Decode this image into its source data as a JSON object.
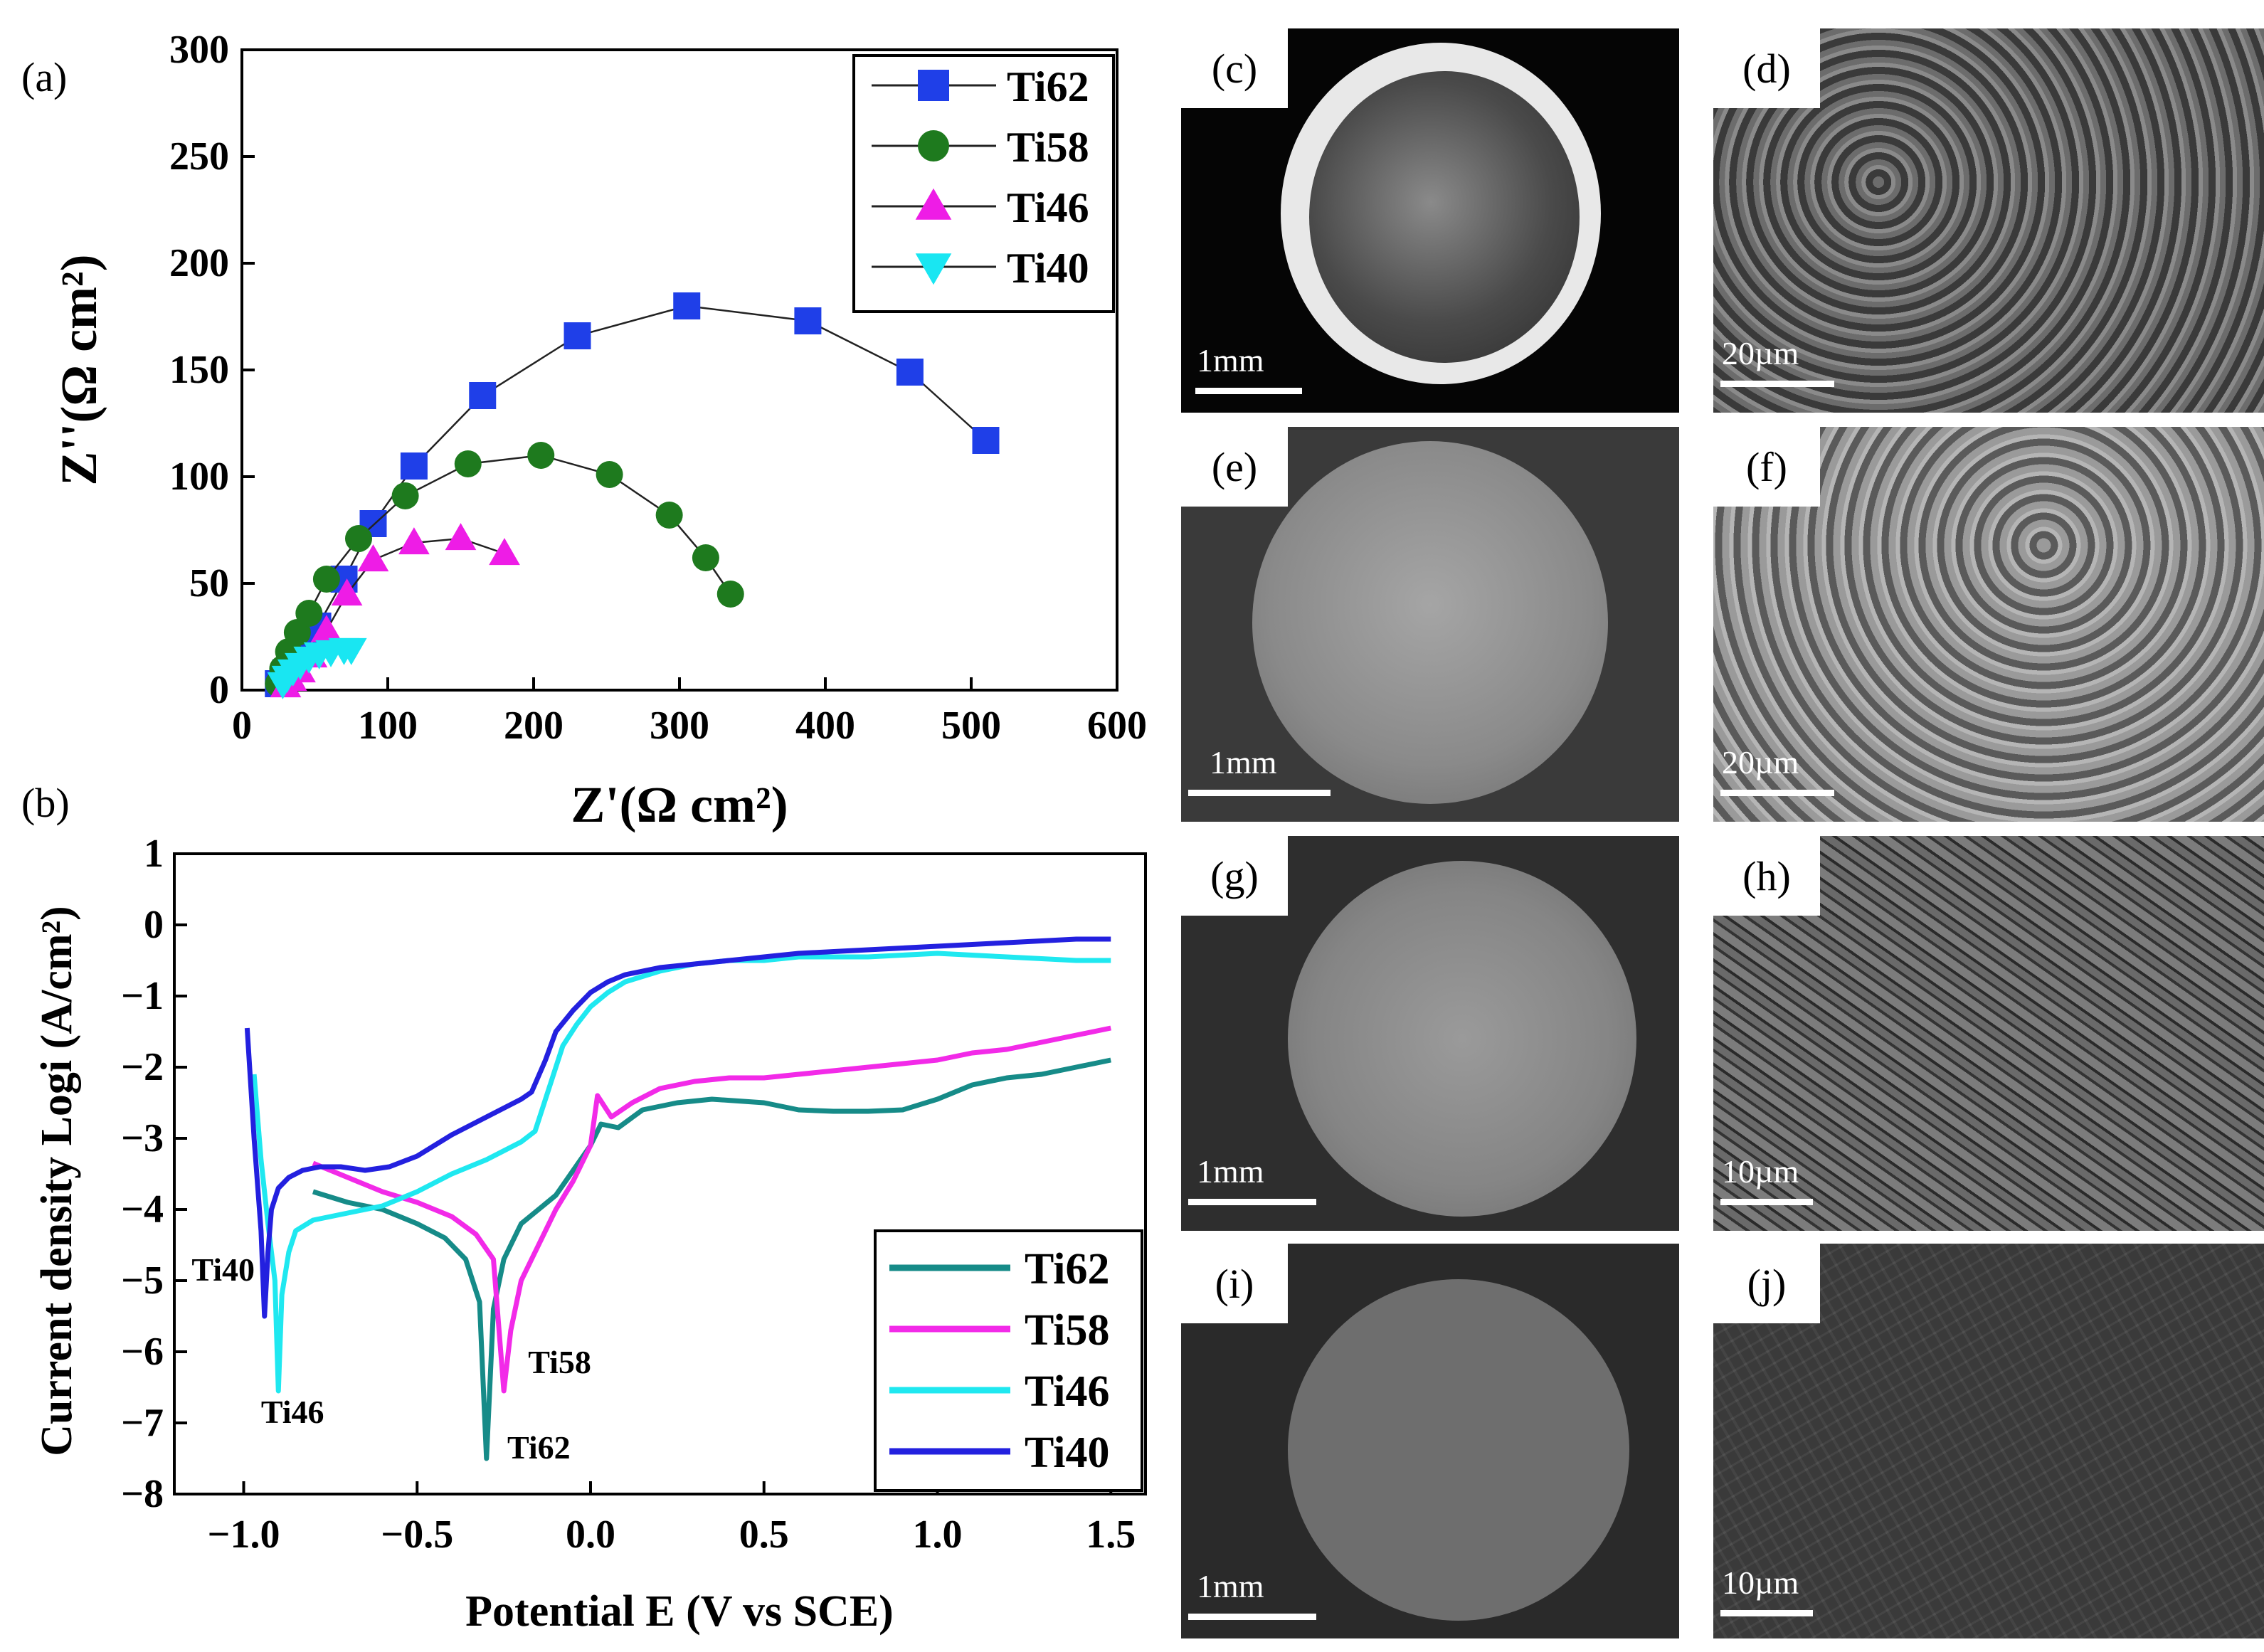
{
  "chart_data": [
    {
      "type": "scatter",
      "panel_label": "(a)",
      "xlabel": "Z'(Ω cm²)",
      "ylabel": "Z''(Ω cm²)",
      "xlim": [
        0,
        600
      ],
      "ylim": [
        0,
        300
      ],
      "xticks": [
        0,
        100,
        200,
        300,
        400,
        500,
        600
      ],
      "yticks": [
        0,
        50,
        100,
        150,
        200,
        250,
        300
      ],
      "legend_position": "top-right",
      "series": [
        {
          "name": "Ti62",
          "marker": "square",
          "color": "#1f3fe8",
          "x": [
            25,
            30,
            36,
            45,
            52,
            70,
            90,
            118,
            165,
            230,
            305,
            388,
            458,
            510
          ],
          "y": [
            3,
            8,
            14,
            22,
            30,
            52,
            78,
            105,
            138,
            166,
            180,
            173,
            149,
            117
          ]
        },
        {
          "name": "Ti58",
          "marker": "circle",
          "color": "#1e7a1e",
          "x": [
            25,
            28,
            32,
            38,
            46,
            58,
            80,
            112,
            155,
            205,
            252,
            293,
            318,
            335
          ],
          "y": [
            3,
            10,
            18,
            27,
            36,
            52,
            71,
            91,
            106,
            110,
            101,
            82,
            62,
            45
          ]
        },
        {
          "name": "Ti46",
          "marker": "triangle-up",
          "color": "#ee1ce6",
          "x": [
            30,
            34,
            40,
            48,
            58,
            72,
            90,
            118,
            150,
            180
          ],
          "y": [
            2,
            5,
            9,
            16,
            28,
            45,
            61,
            69,
            71,
            64
          ]
        },
        {
          "name": "Ti40",
          "marker": "triangle-down",
          "color": "#19e6f2",
          "x": [
            28,
            31,
            35,
            40,
            46,
            53,
            61,
            70,
            75
          ],
          "y": [
            3,
            6,
            9,
            12,
            15,
            17,
            18,
            19,
            19
          ]
        }
      ]
    },
    {
      "type": "line",
      "panel_label": "(b)",
      "xlabel": "Potential E (V vs SCE)",
      "ylabel": "Current density Logi (A/cm²)",
      "xlim": [
        -1.2,
        1.6
      ],
      "ylim": [
        -8,
        1
      ],
      "xticks": [
        -1.0,
        -0.5,
        0.0,
        0.5,
        1.0,
        1.5
      ],
      "xtick_labels": [
        "−1.0",
        "−0.5",
        "0.0",
        "0.5",
        "1.0",
        "1.5"
      ],
      "yticks": [
        -8,
        -7,
        -6,
        -5,
        -4,
        -3,
        -2,
        -1,
        0,
        1
      ],
      "ytick_labels": [
        "−8",
        "−7",
        "−6",
        "−5",
        "−4",
        "−3",
        "−2",
        "−1",
        "0",
        "1"
      ],
      "legend_position": "bottom-right",
      "annotations": [
        {
          "text": "Ti40",
          "x": -1.15,
          "y": -5.0
        },
        {
          "text": "Ti46",
          "x": -0.95,
          "y": -7.0
        },
        {
          "text": "Ti58",
          "x": -0.18,
          "y": -6.3
        },
        {
          "text": "Ti62",
          "x": -0.24,
          "y": -7.5
        }
      ],
      "series": [
        {
          "name": "Ti62",
          "color": "#168b88",
          "x": [
            -0.8,
            -0.7,
            -0.6,
            -0.5,
            -0.42,
            -0.36,
            -0.32,
            -0.3,
            -0.28,
            -0.25,
            -0.2,
            -0.1,
            0.0,
            0.03,
            0.08,
            0.15,
            0.25,
            0.35,
            0.5,
            0.6,
            0.7,
            0.8,
            0.9,
            1.0,
            1.1,
            1.2,
            1.3,
            1.4,
            1.5
          ],
          "y": [
            -3.75,
            -3.9,
            -4.0,
            -4.2,
            -4.4,
            -4.7,
            -5.3,
            -7.5,
            -5.4,
            -4.7,
            -4.2,
            -3.8,
            -3.1,
            -2.8,
            -2.85,
            -2.6,
            -2.5,
            -2.45,
            -2.5,
            -2.6,
            -2.62,
            -2.62,
            -2.6,
            -2.45,
            -2.25,
            -2.15,
            -2.1,
            -2.0,
            -1.9
          ]
        },
        {
          "name": "Ti58",
          "color": "#f22ae8",
          "x": [
            -0.8,
            -0.7,
            -0.6,
            -0.5,
            -0.4,
            -0.33,
            -0.28,
            -0.25,
            -0.23,
            -0.2,
            -0.15,
            -0.1,
            -0.05,
            0.0,
            0.02,
            0.06,
            0.12,
            0.2,
            0.3,
            0.4,
            0.5,
            0.6,
            0.7,
            0.8,
            0.9,
            1.0,
            1.1,
            1.2,
            1.3,
            1.4,
            1.5
          ],
          "y": [
            -3.35,
            -3.55,
            -3.75,
            -3.9,
            -4.1,
            -4.35,
            -4.7,
            -6.55,
            -5.7,
            -5.0,
            -4.5,
            -4.0,
            -3.6,
            -3.1,
            -2.4,
            -2.7,
            -2.5,
            -2.3,
            -2.2,
            -2.15,
            -2.15,
            -2.1,
            -2.05,
            -2.0,
            -1.95,
            -1.9,
            -1.8,
            -1.75,
            -1.65,
            -1.55,
            -1.45
          ]
        },
        {
          "name": "Ti46",
          "color": "#1fe8f0",
          "x": [
            -0.97,
            -0.95,
            -0.93,
            -0.91,
            -0.9,
            -0.89,
            -0.87,
            -0.85,
            -0.8,
            -0.7,
            -0.6,
            -0.5,
            -0.4,
            -0.3,
            -0.2,
            -0.16,
            -0.12,
            -0.08,
            -0.04,
            0.0,
            0.05,
            0.1,
            0.2,
            0.3,
            0.4,
            0.5,
            0.6,
            0.8,
            1.0,
            1.2,
            1.4,
            1.5
          ],
          "y": [
            -2.1,
            -3.3,
            -4.2,
            -5.0,
            -6.55,
            -5.2,
            -4.6,
            -4.3,
            -4.15,
            -4.05,
            -3.95,
            -3.75,
            -3.5,
            -3.3,
            -3.05,
            -2.9,
            -2.3,
            -1.7,
            -1.4,
            -1.15,
            -0.95,
            -0.8,
            -0.65,
            -0.55,
            -0.5,
            -0.5,
            -0.45,
            -0.45,
            -0.4,
            -0.45,
            -0.5,
            -0.5
          ]
        },
        {
          "name": "Ti40",
          "color": "#2320df",
          "x": [
            -0.99,
            -0.97,
            -0.95,
            -0.94,
            -0.93,
            -0.92,
            -0.9,
            -0.87,
            -0.83,
            -0.78,
            -0.72,
            -0.65,
            -0.58,
            -0.5,
            -0.4,
            -0.3,
            -0.2,
            -0.17,
            -0.13,
            -0.1,
            -0.05,
            0.0,
            0.05,
            0.1,
            0.2,
            0.3,
            0.4,
            0.5,
            0.6,
            0.8,
            1.0,
            1.2,
            1.4,
            1.5
          ],
          "y": [
            -1.45,
            -3.0,
            -4.3,
            -5.5,
            -4.6,
            -4.0,
            -3.7,
            -3.55,
            -3.45,
            -3.4,
            -3.4,
            -3.45,
            -3.4,
            -3.25,
            -2.95,
            -2.7,
            -2.45,
            -2.35,
            -1.9,
            -1.5,
            -1.2,
            -0.95,
            -0.8,
            -0.7,
            -0.6,
            -0.55,
            -0.5,
            -0.45,
            -0.4,
            -0.35,
            -0.3,
            -0.25,
            -0.2,
            -0.2
          ]
        }
      ]
    }
  ],
  "images": [
    {
      "label": "(c)",
      "scale": "1mm"
    },
    {
      "label": "(d)",
      "scale": "20µm"
    },
    {
      "label": "(e)",
      "scale": "1mm"
    },
    {
      "label": "(f)",
      "scale": "20µm"
    },
    {
      "label": "(g)",
      "scale": "1mm"
    },
    {
      "label": "(h)",
      "scale": "10µm"
    },
    {
      "label": "(i)",
      "scale": "1mm"
    },
    {
      "label": "(j)",
      "scale": "10µm"
    }
  ]
}
